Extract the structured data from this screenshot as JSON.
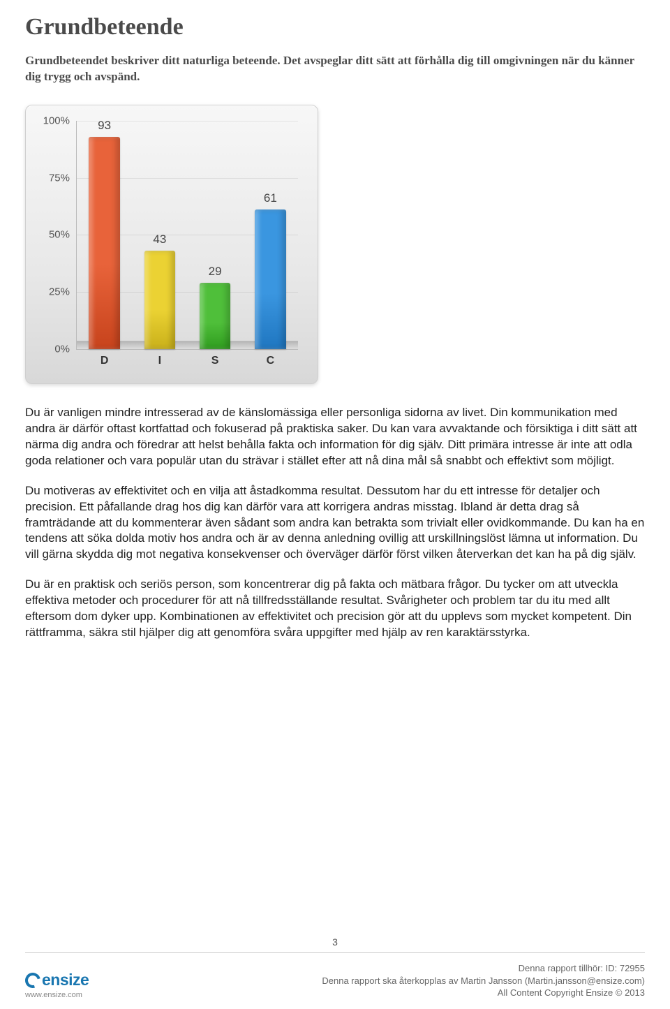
{
  "header": {
    "title": "Grundbeteende",
    "subtitle": "Grundbeteendet beskriver ditt naturliga beteende. Det avspeglar ditt sätt att förhålla dig till omgivningen när du känner dig trygg och avspänd."
  },
  "chart": {
    "type": "bar",
    "categories": [
      "D",
      "I",
      "S",
      "C"
    ],
    "values": [
      93,
      43,
      29,
      61
    ],
    "bar_colors": [
      "#e8633a",
      "#ebd233",
      "#4fbf3a",
      "#3a96e0"
    ],
    "bar_colors_dark": [
      "#c7431c",
      "#c9b01a",
      "#2f9c1e",
      "#1f76c0"
    ],
    "ylim": [
      0,
      100
    ],
    "yticks": [
      0,
      25,
      50,
      75,
      100
    ],
    "ytick_labels": [
      "0%",
      "25%",
      "50%",
      "75%",
      "100%"
    ],
    "bar_width_pct": 14,
    "title_fontsize": 17,
    "label_fontsize": 16,
    "grid_color": "rgba(0,0,0,0.08)",
    "panel_bg_top": "#f7f7f7",
    "panel_bg_bottom": "#d8d8d8"
  },
  "body": {
    "paragraphs": [
      "Du är vanligen mindre intresserad av de känslomässiga eller personliga sidorna av livet. Din kommunikation med andra är därför oftast kortfattad och fokuserad på praktiska saker. Du kan vara avvaktande och försiktiga i ditt sätt att närma dig andra och föredrar att helst behålla fakta och information för dig själv. Ditt primära intresse är inte att odla goda relationer och vara populär utan du strävar i stället efter att nå dina mål så snabbt och effektivt som möjligt.",
      "Du motiveras av effektivitet och en vilja att åstadkomma resultat. Dessutom har du ett intresse för detaljer och precision. Ett påfallande drag hos dig kan därför vara att korrigera andras misstag. Ibland är detta drag så framträdande att du kommenterar även sådant som andra kan betrakta som trivialt eller ovidkommande. Du kan ha en tendens att söka dolda motiv hos andra och är av denna anledning ovillig att urskillningslöst lämna ut information. Du vill gärna skydda dig mot negativa konsekvenser och överväger därför först vilken återverkan det kan ha på dig själv.",
      "Du är en praktisk och seriös person, som koncentrerar dig på fakta och mätbara frågor. Du tycker om att utveckla effektiva metoder och procedurer för att nå tillfredsställande resultat. Svårigheter och problem tar du itu med allt eftersom dom dyker upp. Kombinationen av effektivitet och precision gör att du upplevs som mycket kompetent. Din rättframma, säkra stil hjälper dig att genomföra svåra uppgifter med hjälp av ren karaktärsstyrka."
    ]
  },
  "footer": {
    "page_number": "3",
    "logo_text": "ensize",
    "logo_url": "www.ensize.com",
    "line1": "Denna rapport tillhör: ID: 72955",
    "line2": "Denna rapport ska återkopplas av Martin Jansson (Martin.jansson@ensize.com)",
    "line3": "All Content Copyright Ensize © 2013"
  }
}
